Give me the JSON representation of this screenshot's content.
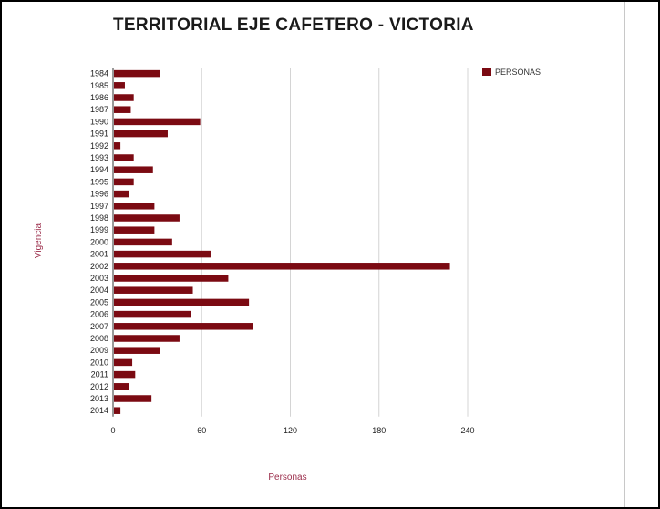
{
  "chart_data": {
    "type": "bar",
    "orientation": "horizontal",
    "title": "TERRITORIAL EJE CAFETERO - VICTORIA",
    "xlabel": "Personas",
    "ylabel": "Vigencia",
    "xlim": [
      0,
      240
    ],
    "x_ticks": [
      "0",
      "60",
      "120",
      "180",
      "240"
    ],
    "grid": true,
    "legend_position": "top-right",
    "categories": [
      "1984",
      "1985",
      "1986",
      "1987",
      "1990",
      "1991",
      "1992",
      "1993",
      "1994",
      "1995",
      "1996",
      "1997",
      "1998",
      "1999",
      "2000",
      "2001",
      "2002",
      "2003",
      "2004",
      "2005",
      "2006",
      "2007",
      "2008",
      "2009",
      "2010",
      "2011",
      "2012",
      "2013",
      "2014"
    ],
    "series": [
      {
        "name": "PERSONAS",
        "color": "#7b0a12",
        "values": [
          32,
          8,
          14,
          12,
          59,
          37,
          5,
          14,
          27,
          14,
          11,
          28,
          45,
          28,
          40,
          66,
          228,
          78,
          54,
          92,
          53,
          95,
          45,
          32,
          13,
          15,
          11,
          26,
          5
        ]
      }
    ]
  },
  "colors": {
    "bar": "#7b0a12",
    "axis_title": "#9b2c4a",
    "grid": "#d4d4d4"
  }
}
